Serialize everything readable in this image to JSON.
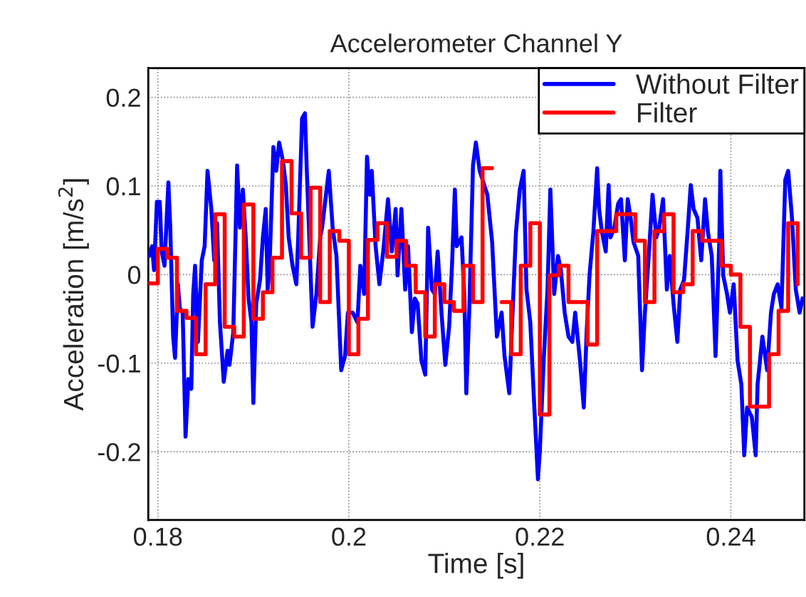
{
  "chart_data": {
    "type": "line",
    "title": "Accelerometer Channel Y",
    "xlabel": "Time [s]",
    "ylabel": "Acceleration [m/s$^{2}$]",
    "xlim": [
      0.179,
      0.2477
    ],
    "ylim": [
      -0.277,
      0.233
    ],
    "xticks": [
      0.18,
      0.2,
      0.22,
      0.24
    ],
    "yticks": [
      -0.2,
      -0.1,
      0,
      0.1,
      0.2
    ],
    "grid": true,
    "legend": "top right",
    "marker": "none",
    "line_style": "solid",
    "series": [
      {
        "name": "Without Filter",
        "color": "#0000ff",
        "x": [
          0.1791,
          0.1794,
          0.1796,
          0.1799,
          0.1802,
          0.1804,
          0.1807,
          0.1811,
          0.1813,
          0.1816,
          0.1818,
          0.1821,
          0.1823,
          0.1826,
          0.1829,
          0.1832,
          0.1835,
          0.1837,
          0.1839,
          0.1842,
          0.1846,
          0.1849,
          0.1852,
          0.1856,
          0.1859,
          0.1862,
          0.1865,
          0.1869,
          0.1873,
          0.1875,
          0.1879,
          0.1883,
          0.1886,
          0.1889,
          0.1892,
          0.1895,
          0.1898,
          0.19,
          0.1903,
          0.1907,
          0.191,
          0.1913,
          0.1915,
          0.1917,
          0.1921,
          0.1924,
          0.1927,
          0.1931,
          0.1934,
          0.1937,
          0.1941,
          0.1945,
          0.1947,
          0.1951,
          0.1954,
          0.1956,
          0.196,
          0.1962,
          0.1966,
          0.197,
          0.1972,
          0.1979,
          0.1983,
          0.1987,
          0.1992,
          0.1996,
          0.1999,
          0.2004,
          0.2009,
          0.2012,
          0.2016,
          0.2019,
          0.2022,
          0.2024,
          0.2028,
          0.2032,
          0.2036,
          0.2041,
          0.2045,
          0.2049,
          0.2051,
          0.2055,
          0.2059,
          0.2062,
          0.2066,
          0.2069,
          0.2072,
          0.2076,
          0.208,
          0.2083,
          0.2087,
          0.209,
          0.2093,
          0.2097,
          0.2101,
          0.2105,
          0.2108,
          0.2111,
          0.2113,
          0.2118,
          0.2121,
          0.2123,
          0.2126,
          0.213,
          0.2133,
          0.2137,
          0.2145,
          0.215,
          0.2155,
          0.216,
          0.2163,
          0.2168,
          0.2171,
          0.2175,
          0.2179,
          0.2183,
          0.2186,
          0.219,
          0.2194,
          0.2198,
          0.22,
          0.2204,
          0.2208,
          0.2211,
          0.2215,
          0.2219,
          0.2222,
          0.2226,
          0.223,
          0.2234,
          0.2237,
          0.2242,
          0.2246,
          0.2249,
          0.2252,
          0.2256,
          0.226,
          0.2262,
          0.2265,
          0.2269,
          0.2272,
          0.2274,
          0.2278,
          0.2282,
          0.2285,
          0.2289,
          0.2292,
          0.2295,
          0.2298,
          0.2303,
          0.2307,
          0.231,
          0.2314,
          0.2318,
          0.2322,
          0.2325,
          0.2329,
          0.2333,
          0.2336,
          0.234,
          0.2344,
          0.2347,
          0.2351,
          0.2355,
          0.2358,
          0.2361,
          0.2365,
          0.2369,
          0.2373,
          0.2376,
          0.238,
          0.2384,
          0.2388,
          0.2389,
          0.2392,
          0.2396,
          0.2399,
          0.2403,
          0.2407,
          0.2411,
          0.2414,
          0.2417,
          0.2422,
          0.2426,
          0.2428,
          0.2433,
          0.2438,
          0.2442,
          0.2445,
          0.2449,
          0.2453,
          0.2457,
          0.246,
          0.2464,
          0.2468,
          0.2472,
          0.2475
        ],
        "values": [
          0.021,
          0.032,
          0.005,
          0.082,
          0.082,
          0.026,
          0.01,
          0.104,
          0.053,
          -0.07,
          -0.094,
          -0.011,
          -0.038,
          -0.043,
          -0.183,
          -0.118,
          -0.129,
          -0.022,
          0.01,
          -0.076,
          0.016,
          0.032,
          0.117,
          0.074,
          0.016,
          0.058,
          -0.054,
          -0.121,
          -0.086,
          -0.102,
          -0.065,
          0.123,
          0.053,
          0.096,
          0.042,
          -0.027,
          -0.054,
          -0.145,
          -0.033,
          -0.006,
          0.042,
          0.074,
          -0.017,
          0.01,
          0.144,
          0.117,
          0.149,
          0.128,
          0.101,
          0.042,
          0.01,
          -0.011,
          0.042,
          0.176,
          0.182,
          0.117,
          -0.001,
          -0.059,
          -0.022,
          0.042,
          0.053,
          0.117,
          0.053,
          0.021,
          -0.108,
          -0.092,
          -0.043,
          -0.043,
          -0.054,
          0.01,
          -0.022,
          0.133,
          0.09,
          0.117,
          0.032,
          -0.011,
          0.026,
          0.085,
          0.026,
          0.074,
          -0.001,
          0.074,
          -0.017,
          0.032,
          -0.065,
          -0.027,
          -0.033,
          -0.097,
          -0.113,
          0.053,
          -0.017,
          -0.022,
          0.026,
          -0.043,
          -0.102,
          -0.059,
          0.01,
          0.096,
          0.032,
          0.042,
          -0.027,
          -0.134,
          -0.043,
          0.123,
          0.149,
          0.117,
          0.09,
          0.037,
          -0.07,
          -0.043,
          -0.092,
          -0.134,
          -0.054,
          0.048,
          0.096,
          0.117,
          -0.017,
          -0.054,
          -0.145,
          -0.231,
          -0.199,
          -0.097,
          -0.017,
          0.096,
          -0.022,
          0.021,
          0.005,
          -0.043,
          -0.07,
          -0.076,
          -0.043,
          -0.097,
          -0.15,
          -0.065,
          -0.001,
          0.048,
          0.12,
          0.074,
          0.048,
          0.026,
          0.101,
          0.042,
          0.053,
          0.08,
          0.085,
          0.016,
          0.085,
          0.064,
          0.037,
          0.021,
          -0.108,
          -0.043,
          0.021,
          0.09,
          0.042,
          0.053,
          0.085,
          -0.017,
          0.021,
          -0.033,
          -0.076,
          -0.017,
          -0.006,
          0.053,
          0.101,
          0.074,
          0.064,
          0.016,
          0.085,
          0.048,
          0.021,
          -0.092,
          0.042,
          0.117,
          -0.001,
          -0.022,
          -0.043,
          -0.011,
          -0.097,
          -0.124,
          -0.204,
          -0.15,
          -0.161,
          -0.204,
          -0.124,
          -0.07,
          -0.108,
          -0.043,
          -0.022,
          -0.011,
          -0.038,
          0.107,
          0.117,
          0.064,
          -0.017,
          -0.043,
          -0.027
        ]
      },
      {
        "name": "Filter",
        "type": "step",
        "color": "#ff0000",
        "x": [
          0.179,
          0.18,
          0.181,
          0.182,
          0.183,
          0.184,
          0.185,
          0.186,
          0.187,
          0.188,
          0.189,
          0.19,
          0.191,
          0.192,
          0.193,
          0.194,
          0.195,
          0.196,
          0.197,
          0.198,
          0.199,
          0.2,
          0.201,
          0.202,
          0.203,
          0.204,
          0.205,
          0.206,
          0.207,
          0.208,
          0.209,
          0.21,
          0.211,
          0.212,
          0.213,
          0.214,
          0.215,
          0.216,
          0.217,
          0.218,
          0.219,
          0.22,
          0.221,
          0.222,
          0.223,
          0.224,
          0.225,
          0.226,
          0.227,
          0.228,
          0.229,
          0.23,
          0.231,
          0.232,
          0.233,
          0.234,
          0.235,
          0.236,
          0.237,
          0.238,
          0.239,
          0.24,
          0.241,
          0.242,
          0.243,
          0.244,
          0.245,
          0.246,
          0.247
        ],
        "values": [
          -0.01,
          0.029,
          0.019,
          -0.041,
          -0.049,
          -0.09,
          -0.011,
          0.068,
          -0.059,
          -0.07,
          0.079,
          -0.05,
          -0.02,
          0.019,
          0.128,
          0.069,
          0.019,
          0.098,
          -0.031,
          0.049,
          0.038,
          -0.09,
          -0.05,
          0.039,
          0.058,
          0.02,
          0.038,
          0.01,
          -0.02,
          -0.07,
          -0.011,
          -0.031,
          -0.041,
          0.01,
          -0.031,
          0.12,
          null,
          -0.031,
          -0.09,
          0.01,
          0.058,
          -0.158,
          -0.001,
          0.01,
          -0.031,
          -0.031,
          -0.079,
          0.049,
          0.049,
          0.068,
          0.068,
          0.038,
          -0.031,
          0.049,
          0.068,
          -0.02,
          -0.011,
          0.049,
          0.038,
          0.038,
          0.01,
          0.0,
          -0.059,
          -0.149,
          -0.149,
          -0.09,
          -0.041,
          0.058,
          -0.011
        ]
      }
    ]
  }
}
